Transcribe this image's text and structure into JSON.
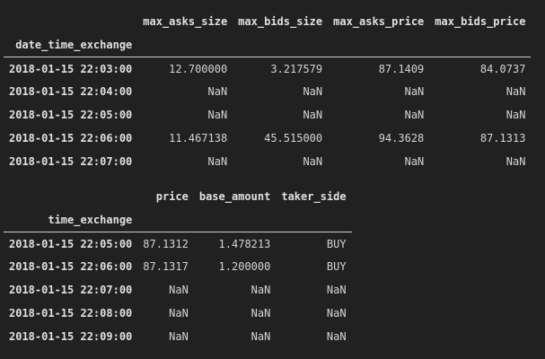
{
  "df1": {
    "columns": [
      "max_asks_size",
      "max_bids_size",
      "max_asks_price",
      "max_bids_price"
    ],
    "index_name": "date_time_exchange",
    "rows": [
      {
        "index": "2018-01-15 22:03:00",
        "values": [
          "12.700000",
          "3.217579",
          "87.1409",
          "84.0737"
        ]
      },
      {
        "index": "2018-01-15 22:04:00",
        "values": [
          "NaN",
          "NaN",
          "NaN",
          "NaN"
        ]
      },
      {
        "index": "2018-01-15 22:05:00",
        "values": [
          "NaN",
          "NaN",
          "NaN",
          "NaN"
        ]
      },
      {
        "index": "2018-01-15 22:06:00",
        "values": [
          "11.467138",
          "45.515000",
          "94.3628",
          "87.1313"
        ]
      },
      {
        "index": "2018-01-15 22:07:00",
        "values": [
          "NaN",
          "NaN",
          "NaN",
          "NaN"
        ]
      }
    ]
  },
  "df2": {
    "columns": [
      "price",
      "base_amount",
      "taker_side"
    ],
    "index_name": "time_exchange",
    "rows": [
      {
        "index": "2018-01-15 22:05:00",
        "values": [
          "87.1312",
          "1.478213",
          "BUY"
        ]
      },
      {
        "index": "2018-01-15 22:06:00",
        "values": [
          "87.1317",
          "1.200000",
          "BUY"
        ]
      },
      {
        "index": "2018-01-15 22:07:00",
        "values": [
          "NaN",
          "NaN",
          "NaN"
        ]
      },
      {
        "index": "2018-01-15 22:08:00",
        "values": [
          "NaN",
          "NaN",
          "NaN"
        ]
      },
      {
        "index": "2018-01-15 22:09:00",
        "values": [
          "NaN",
          "NaN",
          "NaN"
        ]
      }
    ]
  }
}
